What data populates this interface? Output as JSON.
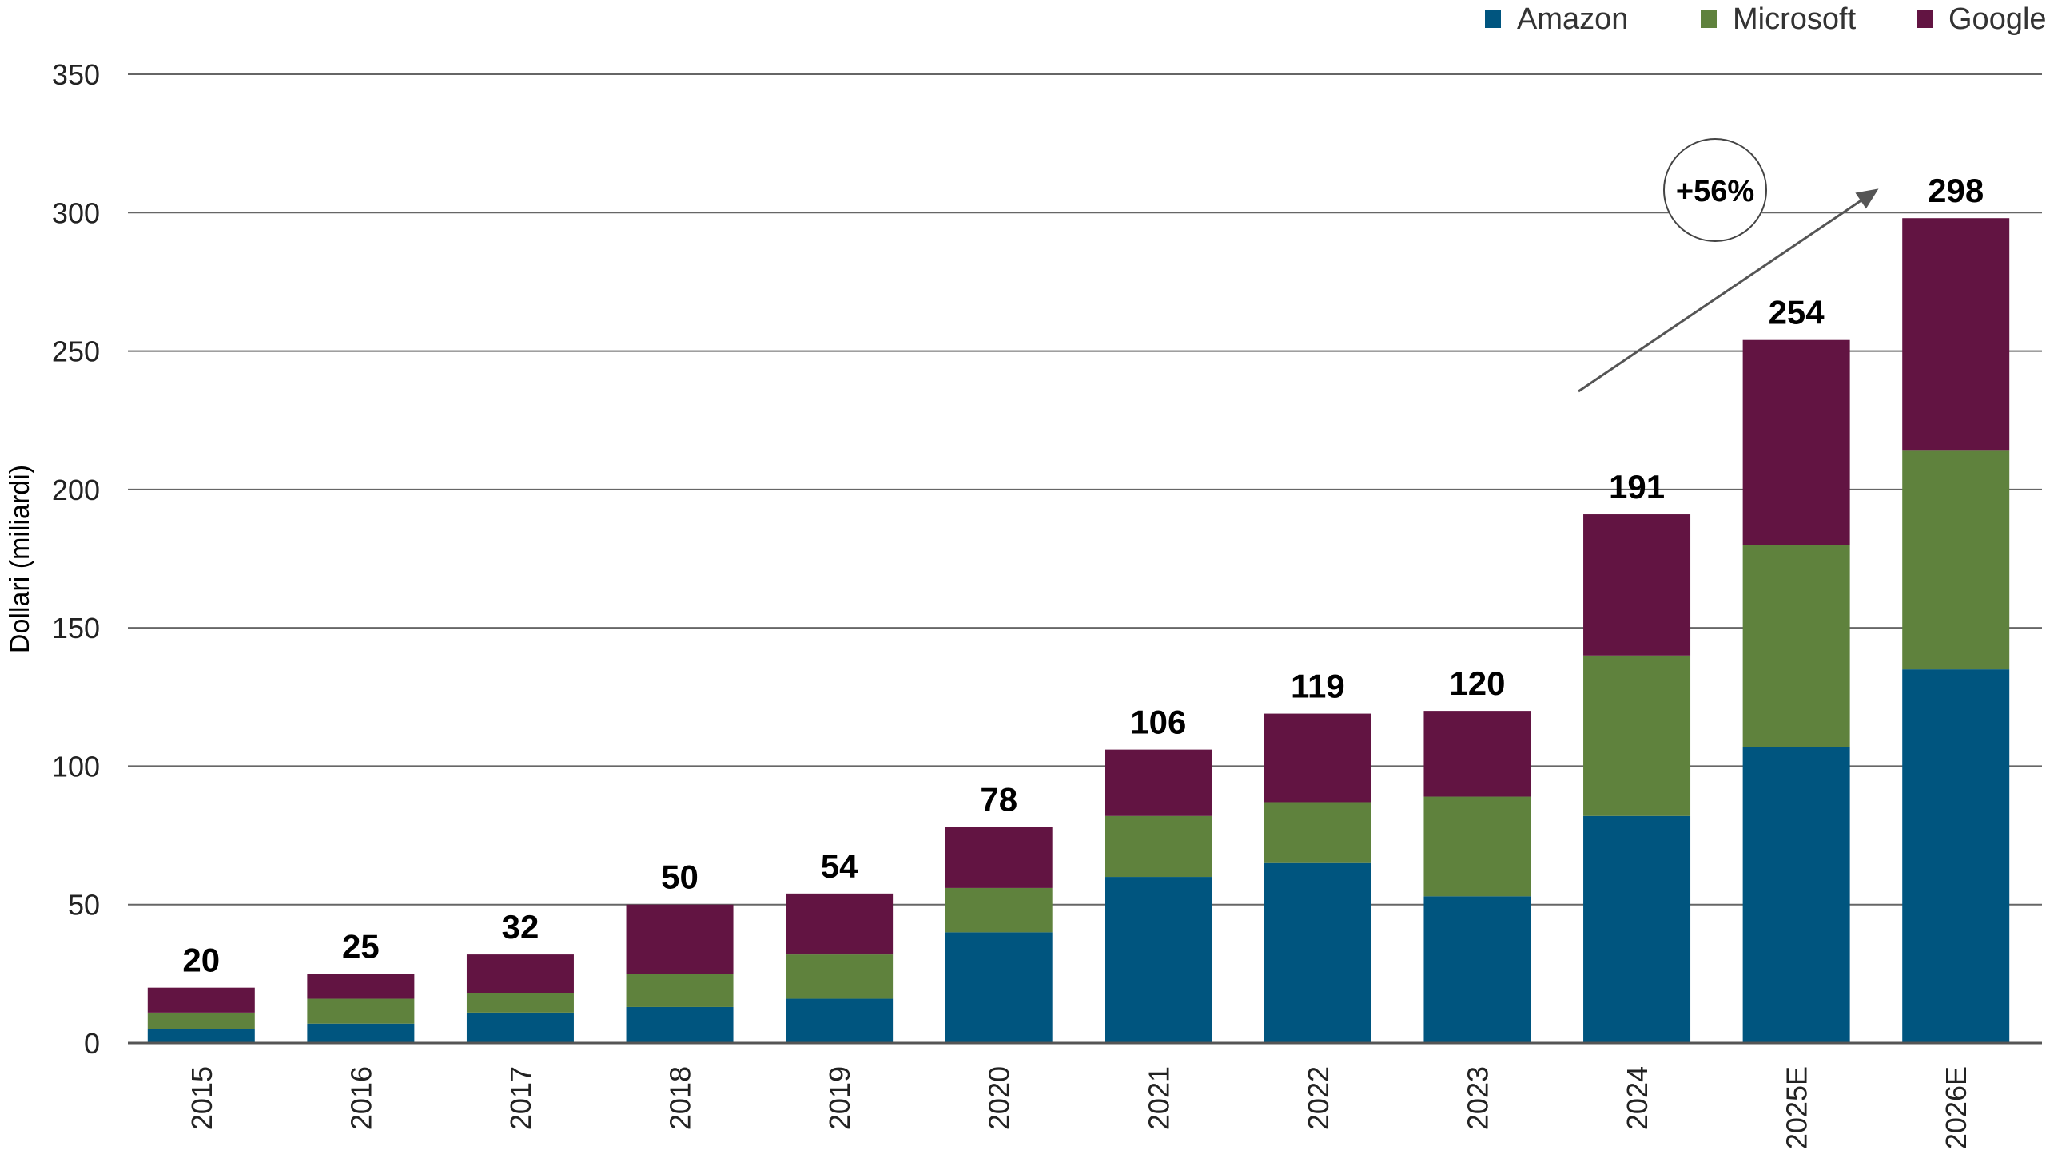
{
  "chart_data": {
    "type": "bar",
    "stacked": true,
    "title": "",
    "xlabel": "",
    "ylabel": "Dollari (miliardi)",
    "ylim": [
      0,
      350
    ],
    "yticks": [
      0,
      50,
      100,
      150,
      200,
      250,
      300,
      350
    ],
    "grid": true,
    "legend_position": "top-right",
    "categories": [
      "2015",
      "2016",
      "2017",
      "2018",
      "2019",
      "2020",
      "2021",
      "2022",
      "2023",
      "2024",
      "2025E",
      "2026E"
    ],
    "series": [
      {
        "name": "Amazon",
        "color": "#00557F",
        "values": [
          5,
          7,
          11,
          13,
          16,
          40,
          60,
          65,
          53,
          82,
          107,
          135
        ]
      },
      {
        "name": "Microsoft",
        "color": "#5F823D",
        "values": [
          6,
          9,
          7,
          12,
          16,
          16,
          22,
          22,
          36,
          58,
          73,
          79
        ]
      },
      {
        "name": "Google",
        "color": "#621442",
        "values": [
          9,
          9,
          14,
          25,
          22,
          22,
          24,
          32,
          31,
          51,
          74,
          84
        ]
      }
    ],
    "totals": [
      "20",
      "25",
      "32",
      "50",
      "54",
      "78",
      "106",
      "119",
      "120",
      "191",
      "254",
      "298"
    ],
    "annotation": {
      "text": "+56%",
      "from": "2024",
      "to": "2026E",
      "shape": "circle with arrow"
    }
  }
}
